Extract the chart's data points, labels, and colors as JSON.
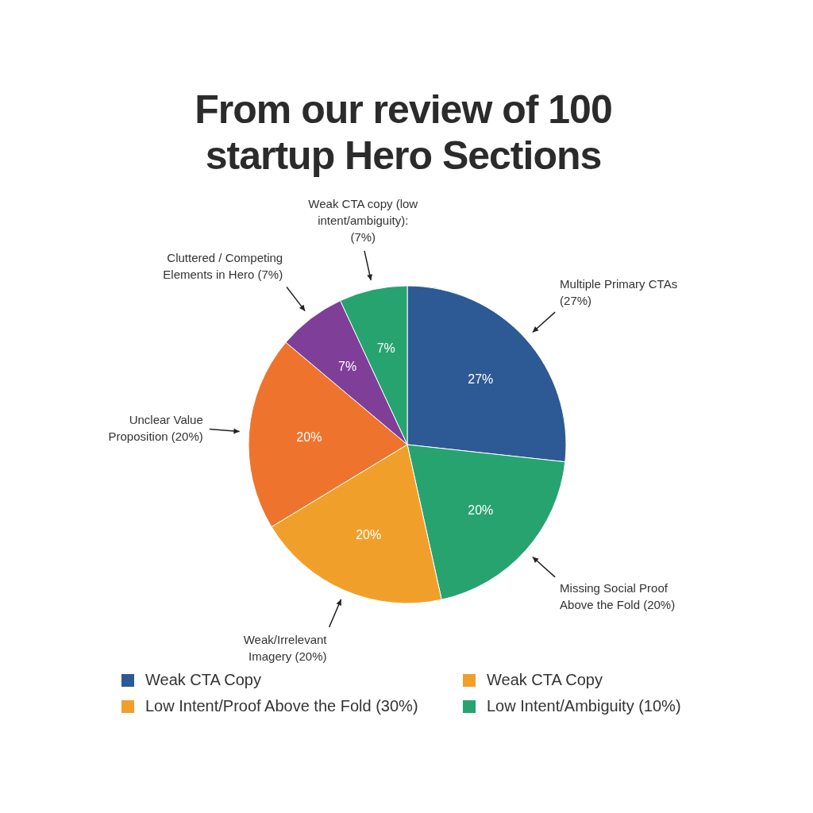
{
  "chart_data": {
    "type": "pie",
    "title": "From our review of 100 startup Hero Sections",
    "categories": [
      "Multiple Primary CTAs (27%)",
      "Missing Social Proof Above the Fold (20%)",
      "Weak/Irrelevant Imagery (20%)",
      "Unclear Value Proposition (20%)",
      "Cluttered / Competing Elements in Hero (7%)",
      "Weak CTA copy (low intent/ambiguity): (7%)"
    ],
    "values": [
      27,
      20,
      20,
      20,
      7,
      7
    ],
    "value_labels": [
      "27%",
      "20%",
      "20%",
      "20%",
      "7%",
      "7%"
    ],
    "colors": [
      "#2d5a94",
      "#27a370",
      "#f0a02a",
      "#ee742d",
      "#7f3f98",
      "#27a370"
    ],
    "annotations": [
      "Weak CTA Copy",
      "Weak CTA Copy",
      "Low Intent/Proof Above the Fold (30%)",
      "Low Intent/Ambiguity (10%)"
    ]
  }
}
